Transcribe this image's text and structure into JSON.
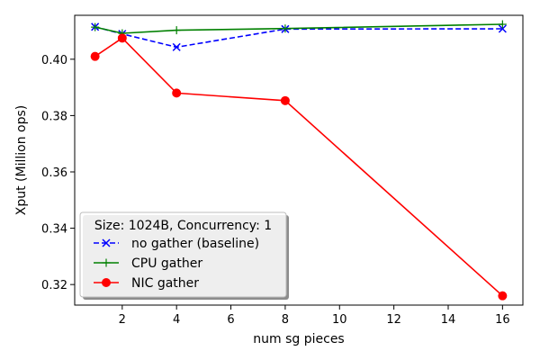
{
  "chart_data": {
    "type": "line",
    "title": "",
    "xlabel": "num sg pieces",
    "ylabel": "Xput (Million ops)",
    "xlim": [
      0.25,
      16.75
    ],
    "ylim": [
      0.3127,
      0.4156
    ],
    "x_ticks": [
      2,
      4,
      6,
      8,
      10,
      12,
      14,
      16
    ],
    "y_ticks": [
      0.32,
      0.34,
      0.36,
      0.38,
      0.4
    ],
    "y_tick_labels": [
      "0.32",
      "0.34",
      "0.36",
      "0.38",
      "0.40"
    ],
    "grid": false,
    "legend": {
      "title": "Size: 1024B, Concurrency: 1",
      "placement": "lower-left"
    },
    "series": [
      {
        "name": "no gather (baseline)",
        "color": "#0000ff",
        "linestyle": "dashed",
        "marker": "x",
        "x": [
          1,
          2,
          4,
          8,
          16
        ],
        "y": [
          0.4115,
          0.409,
          0.4043,
          0.4107,
          0.4108
        ]
      },
      {
        "name": "CPU gather",
        "color": "#008000",
        "linestyle": "solid",
        "marker": "+",
        "x": [
          1,
          2,
          4,
          8,
          16
        ],
        "y": [
          0.4114,
          0.4092,
          0.4103,
          0.4109,
          0.4124
        ]
      },
      {
        "name": "NIC gather",
        "color": "#ff0000",
        "linestyle": "solid",
        "marker": "o",
        "x": [
          1,
          2,
          4,
          8,
          16
        ],
        "y": [
          0.401,
          0.4075,
          0.388,
          0.3853,
          0.316
        ]
      }
    ]
  }
}
